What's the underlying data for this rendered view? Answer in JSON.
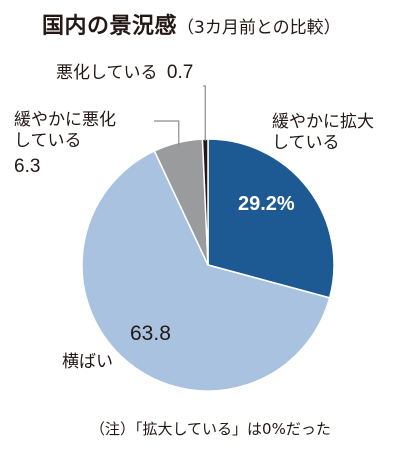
{
  "chart_data": {
    "type": "pie",
    "title": "国内の景況感",
    "subtitle": "（3カ月前との比較）",
    "unit": "%",
    "categories": [
      "緩やかに拡大している",
      "横ばい",
      "緩やかに悪化している",
      "悪化している"
    ],
    "values": [
      29.2,
      63.8,
      6.3,
      0.7
    ],
    "value_labels": [
      "29.2%",
      "63.8",
      "6.3",
      "0.7"
    ],
    "colors": [
      "#1d5a93",
      "#a9c2e0",
      "#9a9b9d",
      "#231815"
    ],
    "start_angle_deg": 0,
    "direction": "clockwise",
    "note": "（注）「拡大している」は0%だった"
  },
  "labels": {
    "expand_line1": "緩やかに拡大",
    "expand_line2": "している",
    "flat": "横ばい",
    "mild_worse_line1": "緩やかに悪化",
    "mild_worse_line2": "している",
    "worse": "悪化している"
  }
}
